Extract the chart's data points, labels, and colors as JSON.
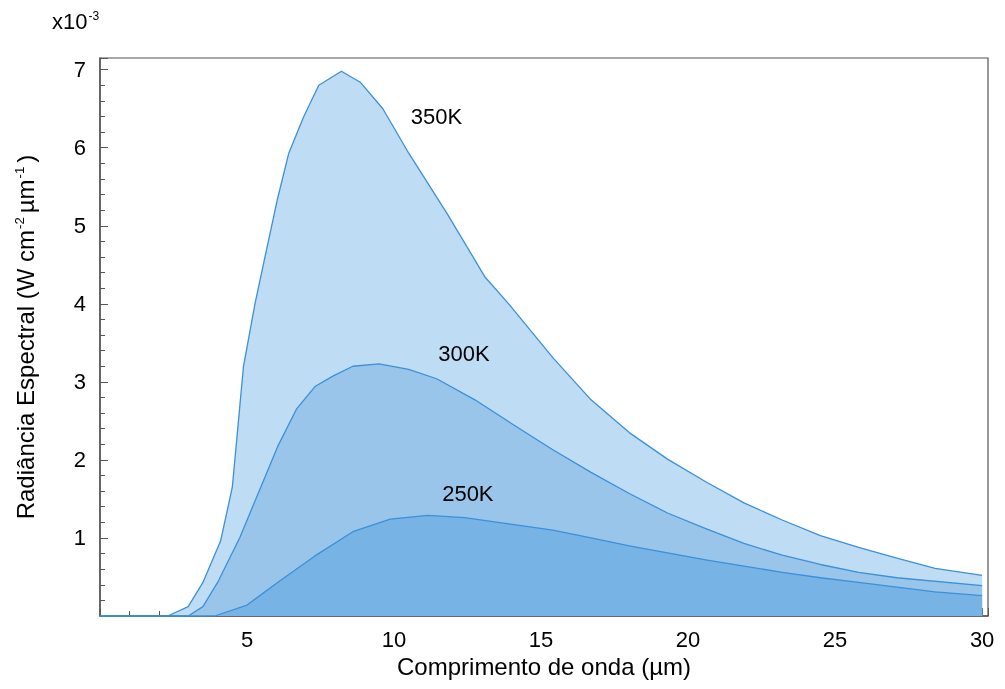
{
  "chart_data": {
    "type": "area",
    "xlabel": "Comprimento de onda (µm)",
    "ylabel": "Radiância Espectral (W cm$^{-2}$µm$^{-1}$)",
    "annotations": [
      "x10$^{-3}$"
    ],
    "xlim": [
      0,
      30.2
    ],
    "ylim": [
      0,
      7.15
    ],
    "xticks": [
      5,
      10,
      15,
      20,
      25,
      30
    ],
    "yticks": [
      {
        "value": 0,
        "label": null
      },
      1,
      2,
      3,
      4,
      5,
      6,
      7
    ],
    "grid": false,
    "legend": false,
    "marker": "none",
    "line_style": "solid",
    "series": [
      {
        "name": "350K",
        "color": "#bfdcf5",
        "x": [
          0,
          2.3,
          3.0,
          3.5,
          4.1,
          4.5,
          4.88,
          5.27,
          5.65,
          6.04,
          6.42,
          6.93,
          7.44,
          8.21,
          8.85,
          9.62,
          10.5,
          11.8,
          13.1,
          13.9,
          15.4,
          16.7,
          18.0,
          19.3,
          20.6,
          21.9,
          23.2,
          24.5,
          25.8,
          27.1,
          28.4,
          30
        ],
        "values": [
          0,
          0,
          0.12,
          0.43,
          0.96,
          1.65,
          3.2,
          4.0,
          4.67,
          5.35,
          5.93,
          6.4,
          6.8,
          6.98,
          6.84,
          6.5,
          5.93,
          5.16,
          4.34,
          4.0,
          3.31,
          2.77,
          2.35,
          2.01,
          1.72,
          1.45,
          1.23,
          1.03,
          0.88,
          0.74,
          0.61,
          0.52
        ]
      },
      {
        "name": "300K",
        "color": "#99c5eb",
        "x": [
          0,
          3.0,
          3.5,
          4.0,
          4.76,
          5.4,
          6.04,
          6.68,
          7.31,
          7.95,
          8.6,
          9.49,
          10.5,
          11.45,
          12.75,
          14.06,
          15.4,
          16.7,
          18.0,
          19.3,
          20.6,
          21.9,
          23.2,
          24.5,
          25.8,
          27.1,
          30
        ],
        "values": [
          0,
          0,
          0.12,
          0.43,
          1.01,
          1.59,
          2.17,
          2.65,
          2.94,
          3.08,
          3.2,
          3.23,
          3.16,
          3.04,
          2.77,
          2.45,
          2.13,
          1.84,
          1.57,
          1.32,
          1.12,
          0.93,
          0.78,
          0.66,
          0.56,
          0.49,
          0.39
        ]
      },
      {
        "name": "250K",
        "color": "#78b3e6",
        "x": [
          0,
          3.9,
          5.0,
          6.04,
          7.31,
          8.6,
          9.87,
          11.15,
          12.4,
          13.9,
          15.4,
          16.7,
          18.0,
          19.3,
          20.6,
          21.9,
          23.2,
          24.5,
          25.8,
          27.1,
          28.4,
          30
        ],
        "values": [
          0,
          0,
          0.14,
          0.43,
          0.77,
          1.08,
          1.24,
          1.29,
          1.26,
          1.18,
          1.1,
          1.0,
          0.9,
          0.81,
          0.72,
          0.64,
          0.56,
          0.49,
          0.43,
          0.37,
          0.31,
          0.26
        ]
      }
    ]
  }
}
